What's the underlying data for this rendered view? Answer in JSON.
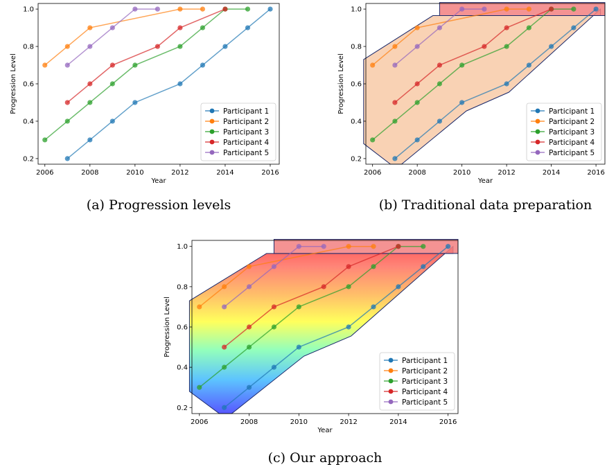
{
  "chart_data": [
    {
      "type": "line",
      "xlabel": "Year",
      "ylabel": "Progression Level",
      "xlim": [
        2005.7,
        2016.4
      ],
      "ylim": [
        0.17,
        1.03
      ],
      "x_ticks": [
        2006,
        2008,
        2010,
        2012,
        2014,
        2016
      ],
      "y_ticks": [
        0.2,
        0.4,
        0.6,
        0.8,
        1.0
      ],
      "legend": "lower-right",
      "caption": "(a) Progression levels",
      "overlay": "none"
    },
    {
      "type": "line",
      "xlabel": "Year",
      "ylabel": "Progression Level",
      "xlim": [
        2005.7,
        2016.4
      ],
      "ylim": [
        0.17,
        1.03
      ],
      "x_ticks": [
        2006,
        2008,
        2010,
        2012,
        2014,
        2016
      ],
      "y_ticks": [
        0.2,
        0.4,
        0.6,
        0.8,
        1.0
      ],
      "legend": "lower-right",
      "caption": "(b) Traditional data preparation",
      "overlay": "flat"
    },
    {
      "type": "line",
      "xlabel": "Year",
      "ylabel": "Progression Level",
      "xlim": [
        2005.7,
        2016.4
      ],
      "ylim": [
        0.17,
        1.03
      ],
      "x_ticks": [
        2006,
        2008,
        2010,
        2012,
        2014,
        2016
      ],
      "y_ticks": [
        0.2,
        0.4,
        0.6,
        0.8,
        1.0
      ],
      "legend": "lower-right",
      "caption": "(c) Our approach",
      "overlay": "gradient"
    }
  ],
  "series": [
    {
      "name": "Participant 1",
      "color": "#1f77b4",
      "x": [
        2007,
        2008,
        2009,
        2010,
        2012,
        2013,
        2014,
        2015,
        2016
      ],
      "y": [
        0.2,
        0.3,
        0.4,
        0.5,
        0.6,
        0.7,
        0.8,
        0.9,
        1.0
      ]
    },
    {
      "name": "Participant 2",
      "color": "#ff7f0e",
      "x": [
        2006,
        2007,
        2008,
        2012,
        2013
      ],
      "y": [
        0.7,
        0.8,
        0.9,
        1.0,
        1.0
      ]
    },
    {
      "name": "Participant 3",
      "color": "#2ca02c",
      "x": [
        2006,
        2007,
        2008,
        2009,
        2010,
        2012,
        2013,
        2014,
        2015
      ],
      "y": [
        0.3,
        0.4,
        0.5,
        0.6,
        0.7,
        0.8,
        0.9,
        1.0,
        1.0
      ]
    },
    {
      "name": "Participant 4",
      "color": "#d62728",
      "x": [
        2007,
        2008,
        2009,
        2011,
        2012,
        2014
      ],
      "y": [
        0.5,
        0.6,
        0.7,
        0.8,
        0.9,
        1.0
      ]
    },
    {
      "name": "Participant 5",
      "color": "#9467bd",
      "x": [
        2007,
        2008,
        2009,
        2010,
        2011
      ],
      "y": [
        0.7,
        0.8,
        0.9,
        1.0,
        1.0
      ]
    }
  ],
  "envelope": {
    "x": [
      2005.6,
      2005.6,
      2008.7,
      2016.2,
      2016.2,
      2012.1,
      2010.2,
      2007.3,
      2006.8
    ],
    "y": [
      0.28,
      0.73,
      0.965,
      0.965,
      1.0,
      0.555,
      0.455,
      0.17,
      0.17
    ],
    "fill": "#f4a66a"
  },
  "top_band": {
    "x": [
      2009.0,
      2016.4,
      2016.4,
      2009.0
    ],
    "y": [
      1.035,
      1.035,
      0.965,
      0.965
    ],
    "fill": "#f28080"
  }
}
